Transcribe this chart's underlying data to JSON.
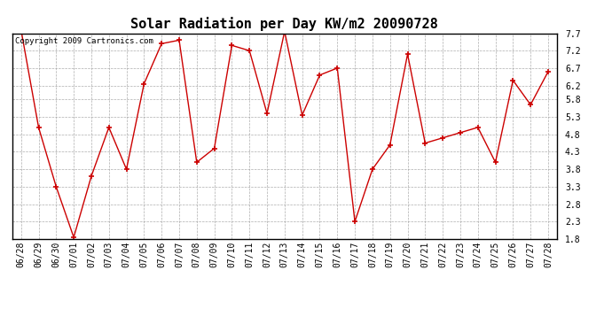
{
  "title": "Solar Radiation per Day KW/m2 20090728",
  "copyright_text": "Copyright 2009 Cartronics.com",
  "dates": [
    "06/28",
    "06/29",
    "06/30",
    "07/01",
    "07/02",
    "07/03",
    "07/04",
    "07/05",
    "07/06",
    "07/07",
    "07/08",
    "07/09",
    "07/10",
    "07/11",
    "07/12",
    "07/13",
    "07/14",
    "07/15",
    "07/16",
    "07/17",
    "07/18",
    "07/19",
    "07/20",
    "07/21",
    "07/22",
    "07/23",
    "07/24",
    "07/25",
    "07/26",
    "07/27",
    "07/28"
  ],
  "values": [
    7.8,
    5.0,
    3.3,
    1.85,
    3.6,
    5.0,
    3.8,
    6.25,
    7.4,
    7.5,
    4.0,
    4.4,
    7.35,
    7.2,
    5.4,
    7.75,
    5.35,
    6.5,
    6.7,
    2.3,
    3.8,
    4.5,
    7.1,
    4.55,
    4.7,
    4.85,
    5.0,
    4.0,
    6.35,
    5.65,
    6.6
  ],
  "line_color": "#cc0000",
  "marker": "+",
  "marker_size": 5,
  "marker_color": "#cc0000",
  "ylim": [
    1.8,
    7.7
  ],
  "yticks": [
    1.8,
    2.3,
    2.8,
    3.3,
    3.8,
    4.3,
    4.8,
    5.3,
    5.8,
    6.2,
    6.7,
    7.2,
    7.7
  ],
  "background_color": "#ffffff",
  "grid_color": "#999999",
  "title_fontsize": 11,
  "tick_fontsize": 7,
  "copyright_fontsize": 6.5
}
